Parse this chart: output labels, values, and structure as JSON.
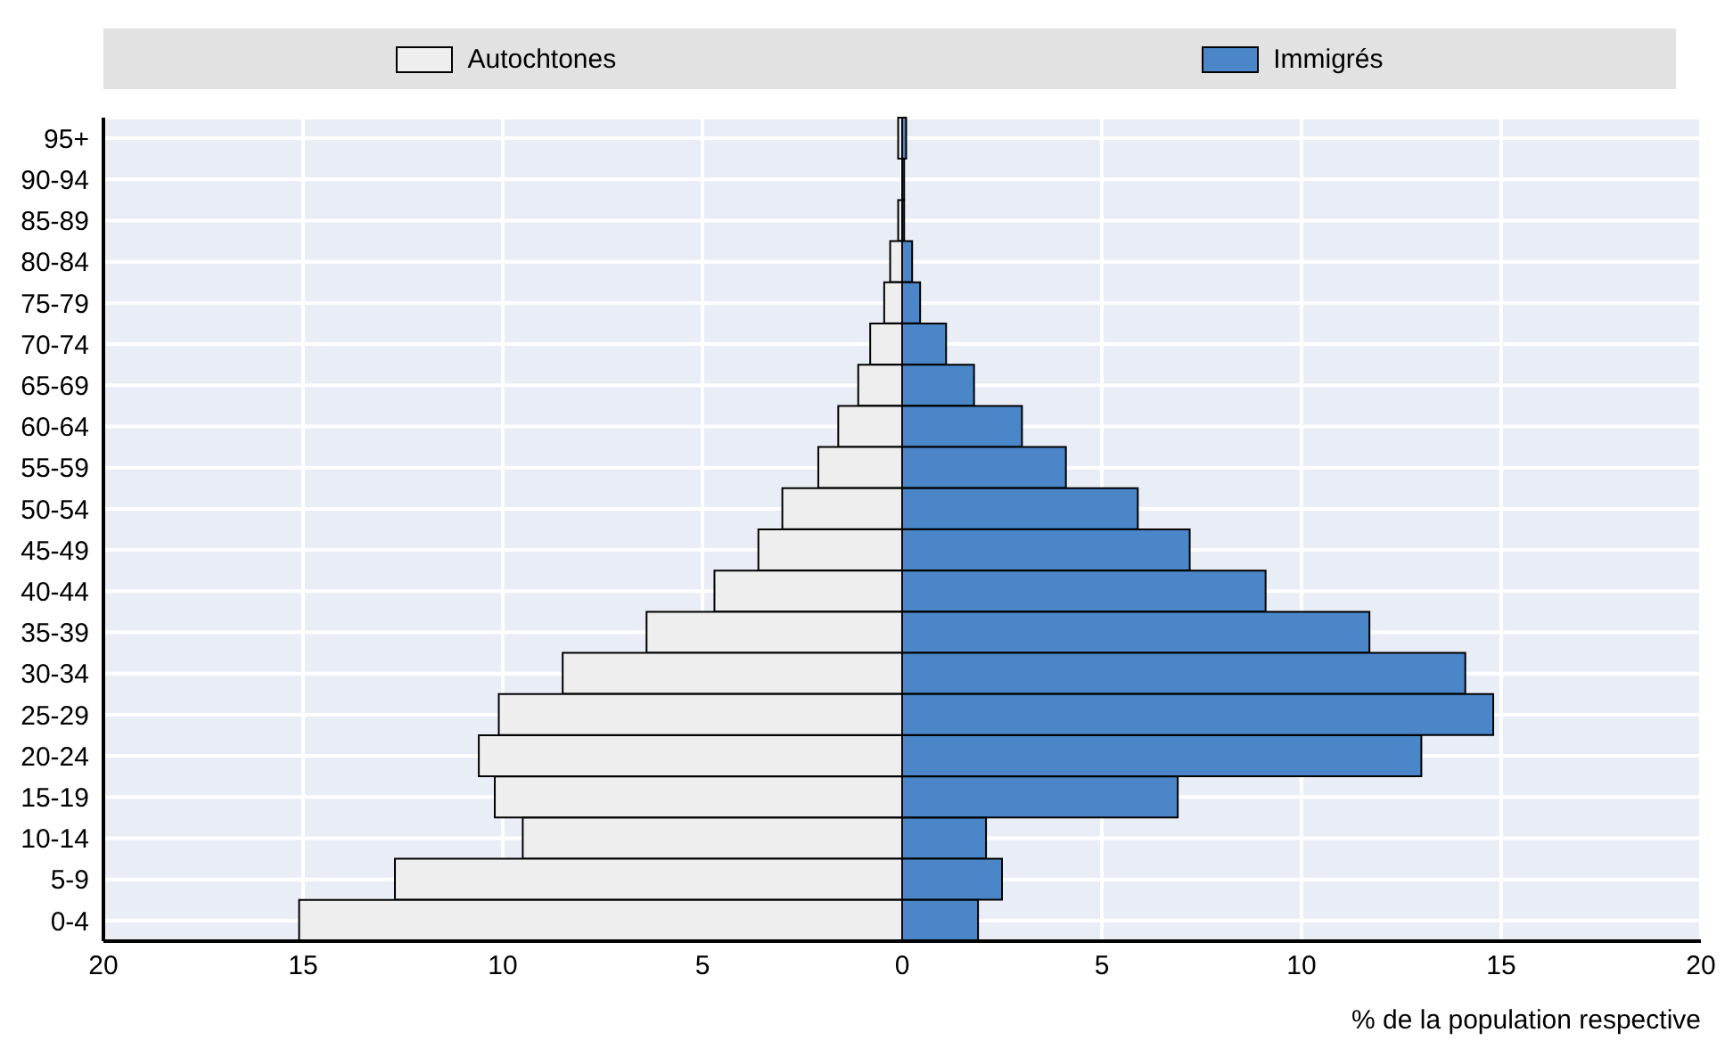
{
  "chart_data": {
    "type": "bar",
    "orientation": "horizontal",
    "stacked": true,
    "xlabel": "% de la population respective",
    "categories": [
      "95+",
      "90-94",
      "85-89",
      "80-84",
      "75-79",
      "70-74",
      "65-69",
      "60-64",
      "55-59",
      "50-54",
      "45-49",
      "40-44",
      "35-39",
      "30-34",
      "25-29",
      "20-24",
      "15-19",
      "10-14",
      "5-9",
      "0-4"
    ],
    "series": [
      {
        "name": "Autochtones",
        "color": "#eeeeee",
        "values": [
          -0.1,
          null,
          -0.1,
          -0.3,
          -0.45,
          -0.8,
          -1.1,
          -1.6,
          -2.1,
          -3.0,
          -3.6,
          -4.7,
          -6.4,
          -8.5,
          -10.1,
          -10.6,
          -10.2,
          -9.5,
          -12.7,
          -15.1
        ]
      },
      {
        "name": "Immigrés",
        "color": "#4a86c8",
        "values": [
          0.1,
          0.05,
          0.05,
          0.25,
          0.45,
          1.1,
          1.8,
          3.0,
          4.1,
          5.9,
          7.2,
          9.1,
          11.7,
          14.1,
          14.8,
          13.0,
          6.9,
          2.1,
          2.5,
          1.9
        ]
      }
    ],
    "xlim": [
      -20,
      20
    ],
    "xticks": [
      {
        "value": -20,
        "label": "20"
      },
      {
        "value": -15,
        "label": "15"
      },
      {
        "value": -10,
        "label": "10"
      },
      {
        "value": -5,
        "label": "5"
      },
      0,
      5,
      10,
      15,
      20
    ],
    "grid": true,
    "legend": "top"
  }
}
